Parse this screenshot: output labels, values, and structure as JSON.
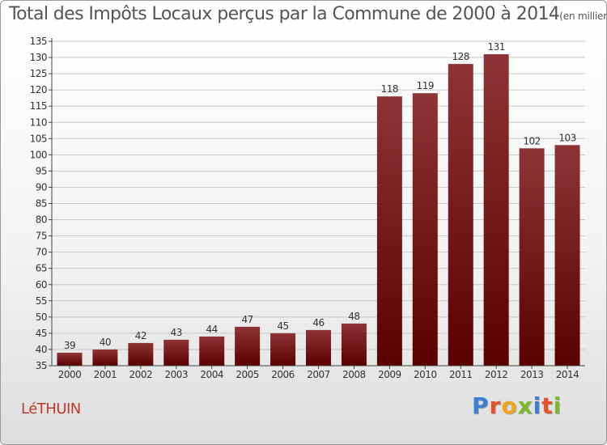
{
  "title": "Total des Impôts Locaux perçus par la Commune de 2000 à 2014",
  "title_unit": "(en milliers d'€)",
  "commune": "LéTHUIN",
  "logo": {
    "text": "Proxiti",
    "colors": [
      "#3c7fd1",
      "#e8512a",
      "#f2a51a",
      "#79b82b",
      "#3c7fd1",
      "#e8512a",
      "#79b82b"
    ]
  },
  "colors": {
    "bar_top": "#8e3436",
    "bar_bottom": "#5a0000",
    "axis": "#444444",
    "grid": "#c8c8c8",
    "text": "#333333"
  },
  "chart_data": {
    "type": "bar",
    "title": "Total des Impôts Locaux perçus par la Commune de 2000 à 2014",
    "xlabel": "",
    "ylabel": "",
    "categories": [
      "2000",
      "2001",
      "2002",
      "2003",
      "2004",
      "2005",
      "2006",
      "2007",
      "2008",
      "2009",
      "2010",
      "2011",
      "2012",
      "2013",
      "2014"
    ],
    "values": [
      39,
      40,
      42,
      43,
      44,
      47,
      45,
      46,
      48,
      118,
      119,
      128,
      131,
      102,
      103
    ],
    "ylim": [
      35,
      135
    ],
    "ytick_step": 5,
    "grid": true
  }
}
